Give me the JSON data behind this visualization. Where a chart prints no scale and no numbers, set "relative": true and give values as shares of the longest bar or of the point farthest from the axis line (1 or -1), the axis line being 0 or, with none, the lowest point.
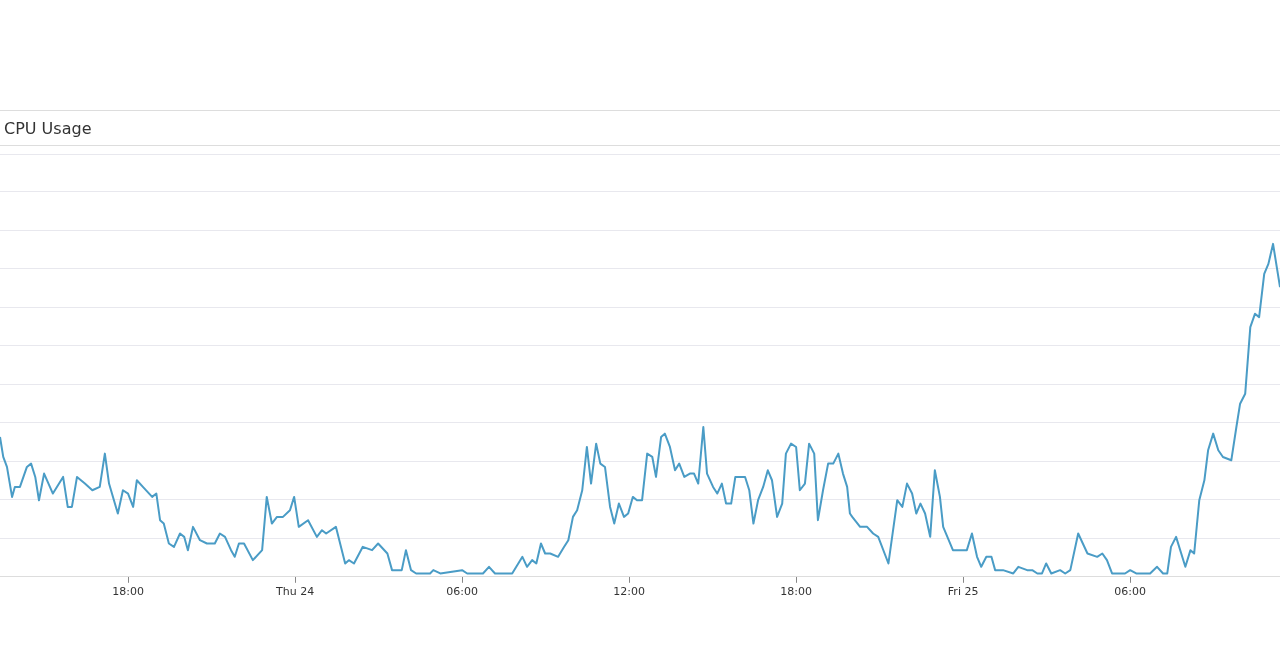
{
  "chart_data": {
    "type": "line",
    "title": "CPU Usage",
    "relative": true,
    "grid": "y",
    "legend": false,
    "marker": "none",
    "line_style": "solid",
    "xlim": [
      "--09-23T13:24",
      "--09-25T11:23"
    ],
    "xticks": [
      {
        "value": "--09-23T18:00",
        "label": "18:00"
      },
      {
        "value": "--09-24",
        "label": "Thu 24"
      },
      {
        "value": "--09-24T06:00",
        "label": "06:00"
      },
      {
        "value": "--09-24T12:00",
        "label": "12:00"
      },
      {
        "value": "--09-24T18:00",
        "label": "18:00"
      },
      {
        "value": "--09-25",
        "label": "Fri 25"
      },
      {
        "value": "--09-25T06:00",
        "label": "06:00"
      }
    ],
    "series": [
      {
        "color": "#4a9cc6",
        "x": [
          "--09-23T13:24",
          "--09-23T13:31",
          "--09-23T13:39",
          "--09-23T13:50",
          "--09-23T13:56",
          "--09-23T14:07",
          "--09-23T14:22",
          "--09-23T14:31",
          "--09-23T14:40",
          "--09-23T14:48",
          "--09-23T14:59",
          "--09-23T15:18",
          "--09-23T15:40",
          "--09-23T15:50",
          "--09-23T15:59",
          "--09-23T16:10",
          "--09-23T16:27",
          "--09-23T16:43",
          "--09-23T16:59",
          "--09-23T17:10",
          "--09-23T17:19",
          "--09-23T17:38",
          "--09-23T17:49",
          "--09-23T18:00",
          "--09-23T18:11",
          "--09-23T18:19",
          "--09-23T18:32",
          "--09-23T18:52",
          "--09-23T19:01",
          "--09-23T19:09",
          "--09-23T19:17",
          "--09-23T19:28",
          "--09-23T19:39",
          "--09-23T19:52",
          "--09-23T20:01",
          "--09-23T20:09",
          "--09-23T20:20",
          "--09-23T20:35",
          "--09-23T20:50",
          "--09-23T21:07",
          "--09-23T21:18",
          "--09-23T21:29",
          "--09-23T21:42",
          "--09-23T21:50",
          "--09-23T21:59",
          "--09-23T22:10",
          "--09-23T22:29",
          "--09-23T22:49",
          "--09-23T22:59",
          "--09-23T23:10",
          "--09-23T23:21",
          "--09-23T23:34",
          "--09-23T23:49",
          "--09-23T23:58",
          "--09-24T00:08",
          "--09-24T00:28",
          "--09-24T00:47",
          "--09-24T00:58",
          "--09-24T01:07",
          "--09-24T01:28",
          "--09-24T01:48",
          "--09-24T01:56",
          "--09-24T02:07",
          "--09-24T02:26",
          "--09-24T02:46",
          "--09-24T02:59",
          "--09-24T03:19",
          "--09-24T03:29",
          "--09-24T03:50",
          "--09-24T03:59",
          "--09-24T04:10",
          "--09-24T04:21",
          "--09-24T04:51",
          "--09-24T04:58",
          "--09-24T05:13",
          "--09-24T06:00",
          "--09-24T06:11",
          "--09-24T06:45",
          "--09-24T06:58",
          "--09-24T07:11",
          "--09-24T07:28",
          "--09-24T07:48",
          "--09-24T08:10",
          "--09-24T08:20",
          "--09-24T08:31",
          "--09-24T08:40",
          "--09-24T08:50",
          "--09-24T08:59",
          "--09-24T09:10",
          "--09-24T09:27",
          "--09-24T09:40",
          "--09-24T09:49",
          "--09-24T09:59",
          "--09-24T10:08",
          "--09-24T10:19",
          "--09-24T10:29",
          "--09-24T10:38",
          "--09-24T10:49",
          "--09-24T10:58",
          "--09-24T11:08",
          "--09-24T11:19",
          "--09-24T11:28",
          "--09-24T11:38",
          "--09-24T11:49",
          "--09-24T11:58",
          "--09-24T12:08",
          "--09-24T12:17",
          "--09-24T12:28",
          "--09-24T12:39",
          "--09-24T12:50",
          "--09-24T12:58",
          "--09-24T13:09",
          "--09-24T13:17",
          "--09-24T13:28",
          "--09-24T13:39",
          "--09-24T13:48",
          "--09-24T13:59",
          "--09-24T14:11",
          "--09-24T14:20",
          "--09-24T14:29",
          "--09-24T14:40",
          "--09-24T14:48",
          "--09-24T15:01",
          "--09-24T15:10",
          "--09-24T15:20",
          "--09-24T15:29",
          "--09-24T15:40",
          "--09-24T15:49",
          "--09-24T15:59",
          "--09-24T16:10",
          "--09-24T16:19",
          "--09-24T16:28",
          "--09-24T16:38",
          "--09-24T16:49",
          "--09-24T16:59",
          "--09-24T17:08",
          "--09-24T17:19",
          "--09-24T17:30",
          "--09-24T17:38",
          "--09-24T17:49",
          "--09-24T18:00",
          "--09-24T18:08",
          "--09-24T18:19",
          "--09-24T18:28",
          "--09-24T18:39",
          "--09-24T18:47",
          "--09-24T18:58",
          "--09-24T19:09",
          "--09-24T19:20",
          "--09-24T19:31",
          "--09-24T19:41",
          "--09-24T19:50",
          "--09-24T19:56",
          "--09-24T20:01",
          "--09-24T20:18",
          "--09-24T20:33",
          "--09-24T20:46",
          "--09-24T20:57",
          "--09-24T21:19",
          "--09-24T21:38",
          "--09-24T21:49",
          "--09-24T21:59",
          "--09-24T22:10",
          "--09-24T22:19",
          "--09-24T22:28",
          "--09-24T22:38",
          "--09-24T22:49",
          "--09-24T22:59",
          "--09-24T23:10",
          "--09-24T23:17",
          "--09-24T23:38",
          "--09-24T23:58",
          "--09-25T00:08",
          "--09-25T00:19",
          "--09-25T00:30",
          "--09-25T00:39",
          "--09-25T00:50",
          "--09-25T01:01",
          "--09-25T01:09",
          "--09-25T01:26",
          "--09-25T01:48",
          "--09-25T01:59",
          "--09-25T02:18",
          "--09-25T02:29",
          "--09-25T02:40",
          "--09-25T02:50",
          "--09-25T02:59",
          "--09-25T03:10",
          "--09-25T03:29",
          "--09-25T03:40",
          "--09-25T03:51",
          "--09-25T04:08",
          "--09-25T04:28",
          "--09-25T04:49",
          "--09-25T05:00",
          "--09-25T05:10",
          "--09-25T05:21",
          "--09-25T05:49",
          "--09-25T06:00",
          "--09-25T06:13",
          "--09-25T06:43",
          "--09-25T06:58",
          "--09-25T07:11",
          "--09-25T07:20",
          "--09-25T07:28",
          "--09-25T07:39",
          "--09-25T07:59",
          "--09-25T08:10",
          "--09-25T08:18",
          "--09-25T08:29",
          "--09-25T08:40",
          "--09-25T08:48",
          "--09-25T08:59",
          "--09-25T09:10",
          "--09-25T09:20",
          "--09-25T09:38",
          "--09-25T09:49",
          "--09-25T09:57",
          "--09-25T10:08",
          "--09-25T10:19",
          "--09-25T10:29",
          "--09-25T10:38",
          "--09-25T10:49",
          "--09-25T10:58",
          "--09-25T11:08",
          "--09-25T11:23"
        ],
        "values": [
          0.42,
          0.36,
          0.33,
          0.24,
          0.27,
          0.27,
          0.33,
          0.34,
          0.3,
          0.23,
          0.31,
          0.25,
          0.3,
          0.21,
          0.21,
          0.3,
          0.28,
          0.26,
          0.27,
          0.37,
          0.28,
          0.19,
          0.26,
          0.25,
          0.21,
          0.29,
          0.27,
          0.24,
          0.25,
          0.17,
          0.16,
          0.1,
          0.09,
          0.13,
          0.12,
          0.08,
          0.15,
          0.11,
          0.1,
          0.1,
          0.13,
          0.12,
          0.08,
          0.06,
          0.1,
          0.1,
          0.05,
          0.08,
          0.24,
          0.16,
          0.18,
          0.18,
          0.2,
          0.24,
          0.15,
          0.17,
          0.12,
          0.14,
          0.13,
          0.15,
          0.04,
          0.05,
          0.04,
          0.09,
          0.08,
          0.1,
          0.07,
          0.02,
          0.02,
          0.08,
          0.02,
          0.01,
          0.01,
          0.02,
          0.01,
          0.02,
          0.01,
          0.01,
          0.03,
          0.01,
          0.01,
          0.01,
          0.06,
          0.03,
          0.05,
          0.04,
          0.1,
          0.07,
          0.07,
          0.06,
          0.09,
          0.11,
          0.18,
          0.2,
          0.26,
          0.39,
          0.28,
          0.4,
          0.34,
          0.33,
          0.21,
          0.16,
          0.22,
          0.18,
          0.19,
          0.24,
          0.23,
          0.23,
          0.37,
          0.36,
          0.3,
          0.42,
          0.43,
          0.39,
          0.32,
          0.34,
          0.3,
          0.31,
          0.31,
          0.28,
          0.45,
          0.31,
          0.27,
          0.25,
          0.28,
          0.22,
          0.22,
          0.3,
          0.3,
          0.3,
          0.26,
          0.16,
          0.23,
          0.27,
          0.32,
          0.29,
          0.18,
          0.22,
          0.37,
          0.4,
          0.39,
          0.26,
          0.28,
          0.4,
          0.37,
          0.17,
          0.26,
          0.34,
          0.34,
          0.37,
          0.31,
          0.27,
          0.19,
          0.18,
          0.15,
          0.15,
          0.13,
          0.12,
          0.04,
          0.23,
          0.21,
          0.28,
          0.25,
          0.19,
          0.22,
          0.19,
          0.12,
          0.32,
          0.24,
          0.15,
          0.08,
          0.08,
          0.08,
          0.13,
          0.06,
          0.03,
          0.06,
          0.06,
          0.02,
          0.02,
          0.01,
          0.03,
          0.02,
          0.02,
          0.01,
          0.01,
          0.04,
          0.01,
          0.02,
          0.01,
          0.02,
          0.13,
          0.07,
          0.06,
          0.07,
          0.05,
          0.01,
          0.01,
          0.02,
          0.01,
          0.01,
          0.03,
          0.01,
          0.01,
          0.09,
          0.12,
          0.03,
          0.08,
          0.07,
          0.23,
          0.29,
          0.38,
          0.43,
          0.38,
          0.36,
          0.35,
          0.45,
          0.52,
          0.55,
          0.75,
          0.79,
          0.78,
          0.91,
          0.94,
          1,
          0.87
        ]
      }
    ]
  }
}
